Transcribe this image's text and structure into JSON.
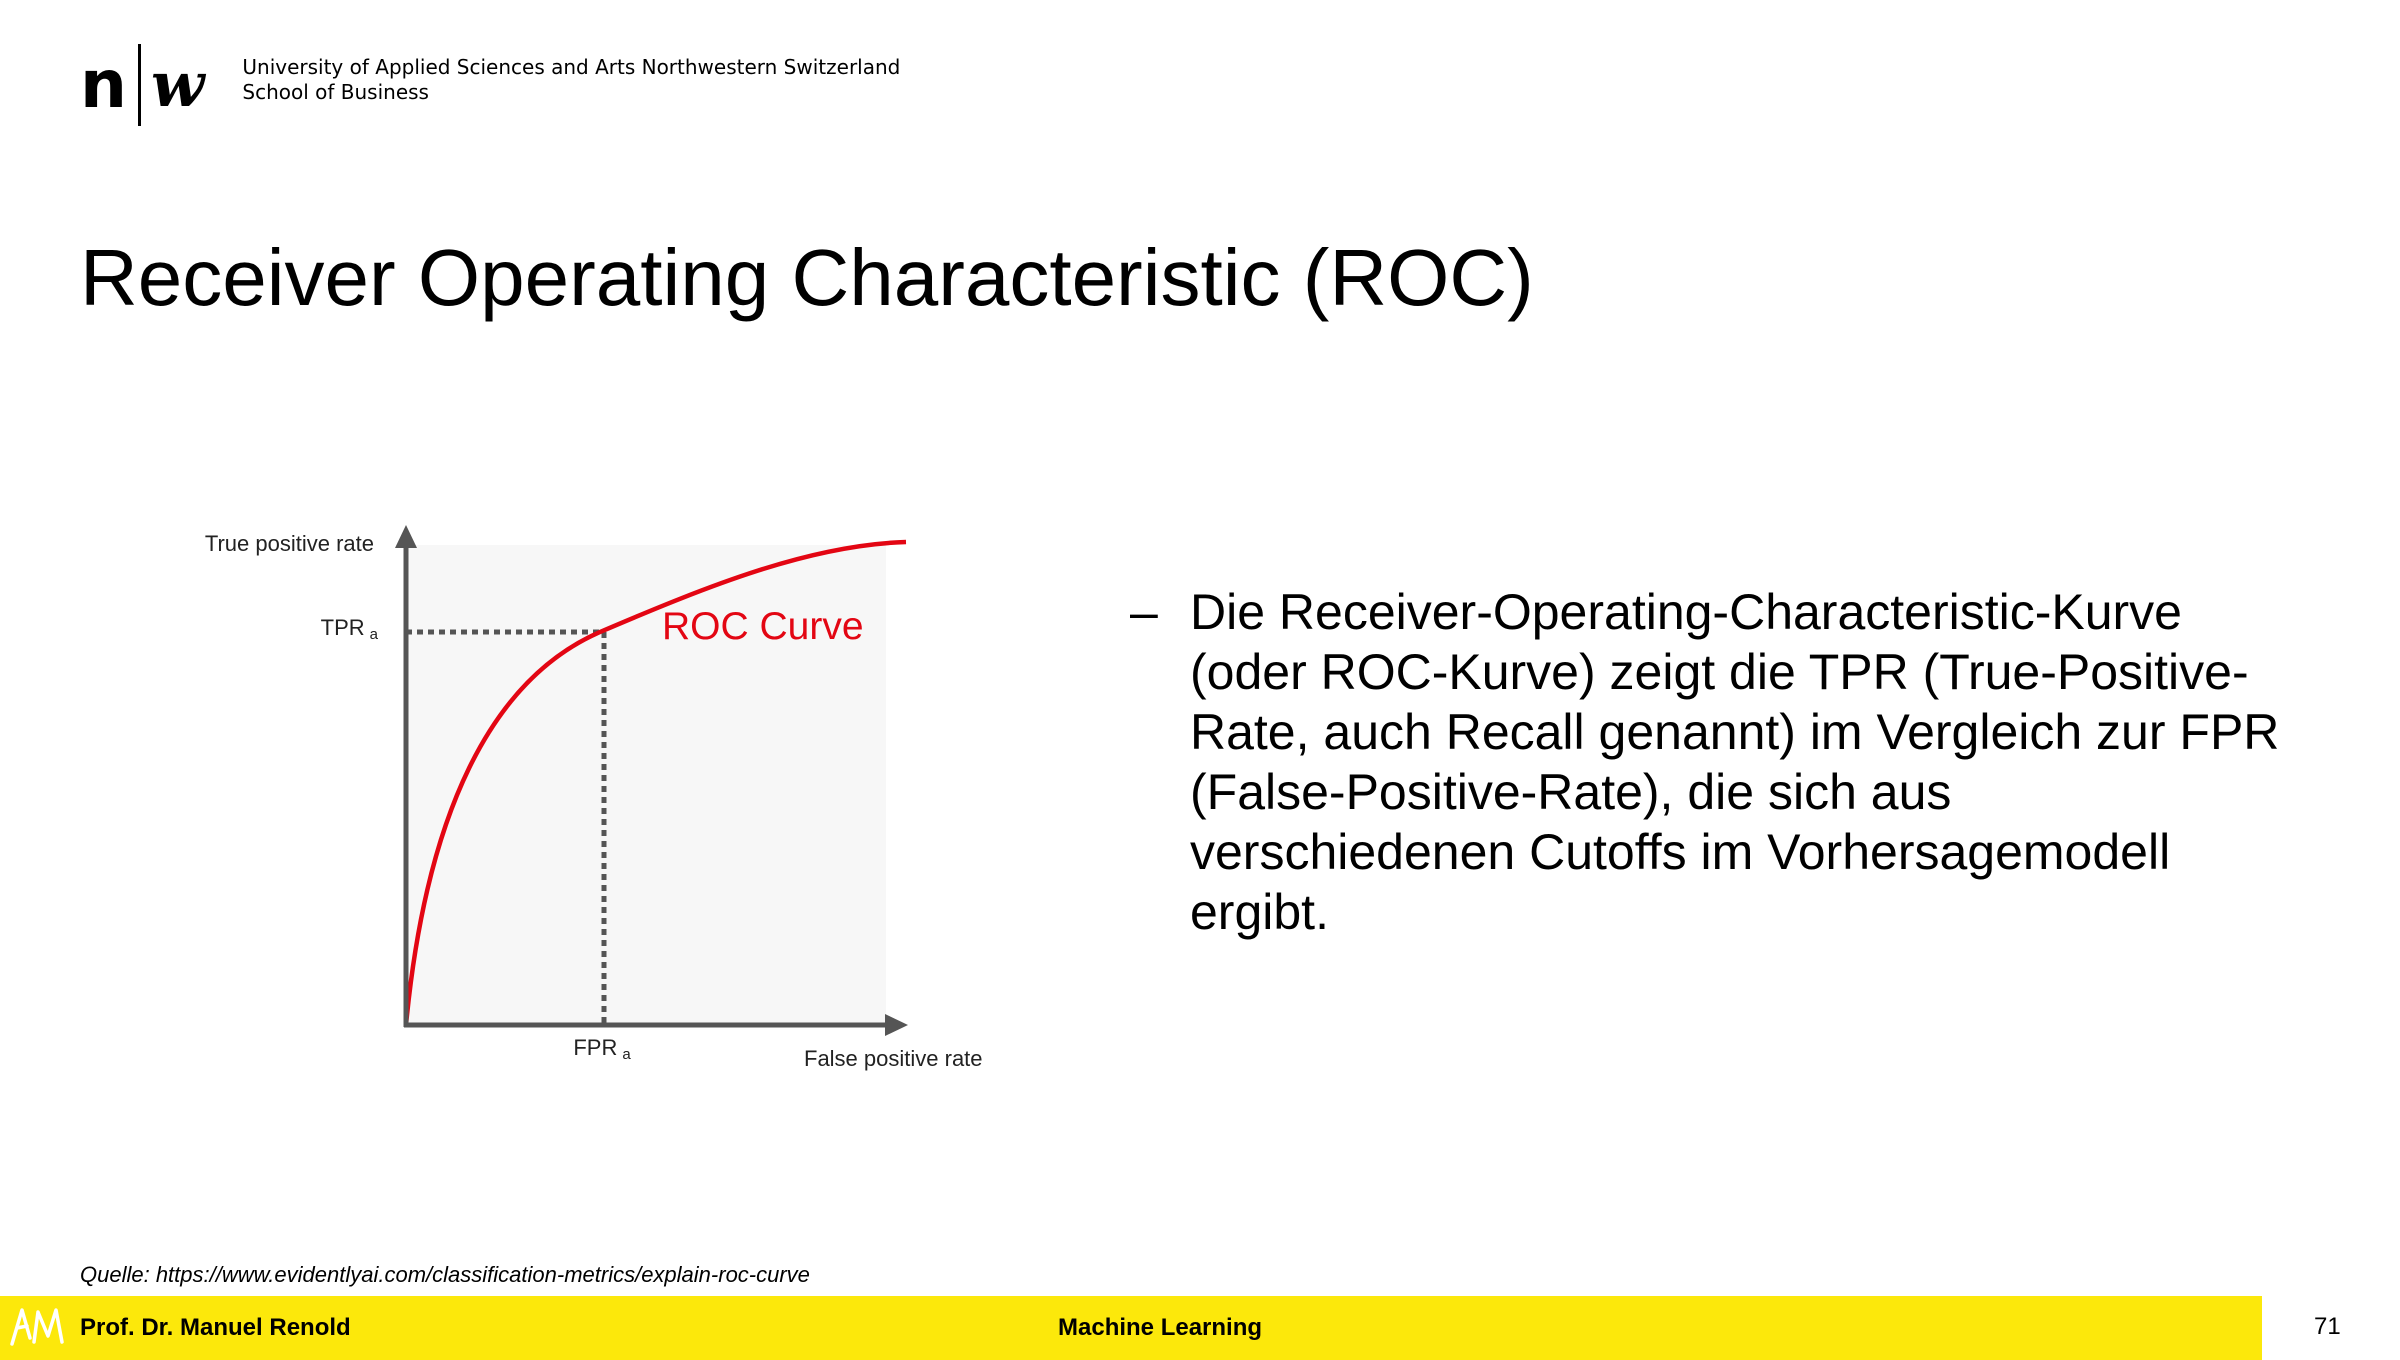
{
  "header": {
    "logo": {
      "left": "n",
      "right": "w"
    },
    "institution_line1": "University of Applied Sciences and Arts Northwestern Switzerland",
    "institution_line2": "School of Business"
  },
  "title": "Receiver Operating Characteristic (ROC)",
  "diagram": {
    "y_axis_label": "True positive rate",
    "x_axis_label": "False positive rate",
    "tpr_label": "TPR",
    "tpr_subscript": "a",
    "fpr_label": "FPR",
    "fpr_subscript": "a",
    "curve_label": "ROC Curve",
    "colors": {
      "curve": "#e30613",
      "axis": "#555555",
      "plot_bg": "#f7f7f7",
      "dotted": "#555555"
    }
  },
  "bullet": {
    "dash": "–",
    "text": "Die Receiver-Operating-Characteristic-Kurve (oder ROC-Kurve) zeigt die TPR (True-Positive-Rate, auch Recall genannt) im Vergleich zur FPR (False-Positive-Rate), die sich aus verschiedenen Cutoffs im Vorhersagemodell ergibt."
  },
  "source": "Quelle: https://www.evidentlyai.com/classification-metrics/explain-roc-curve",
  "footer": {
    "logo_text": "AM",
    "author": "Prof. Dr. Manuel Renold",
    "course": "Machine Learning",
    "page_number": "71",
    "bar_color": "#fce80b"
  }
}
